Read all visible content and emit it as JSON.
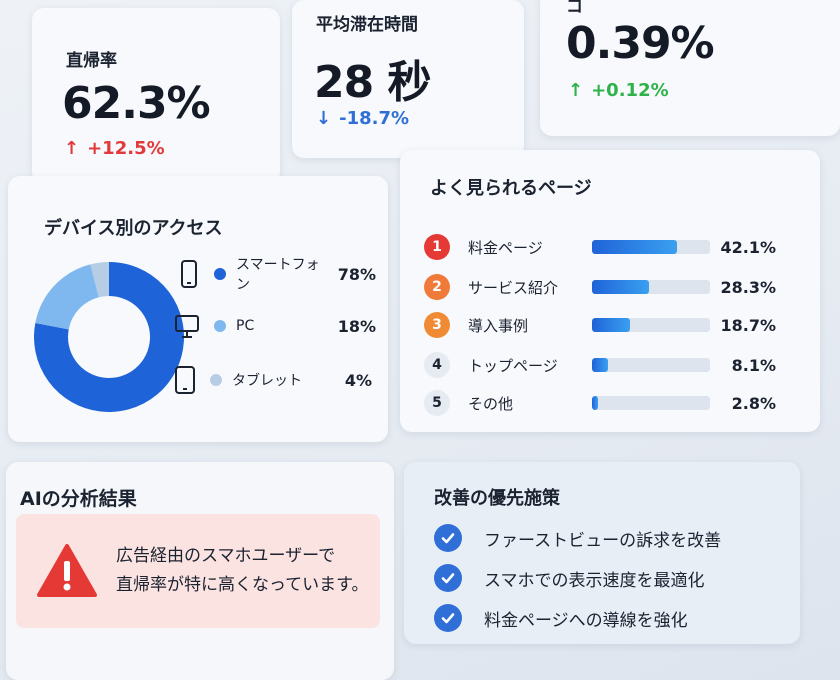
{
  "kpis": [
    {
      "label": "直帰率",
      "value": "62.3%",
      "delta": "+12.5%",
      "direction": "up",
      "color": "#e23a3a"
    },
    {
      "label": "平均滞在時間",
      "value": "28 秒",
      "delta": "-18.7%",
      "direction": "down",
      "color": "#2f6fd6"
    },
    {
      "label": "コ",
      "value": "0.39%",
      "delta": "+0.12%",
      "direction": "up",
      "color": "#2fb24a"
    }
  ],
  "device": {
    "title": "デバイス別のアクセス",
    "items": [
      {
        "name": "スマートフォン",
        "pct": "78%",
        "value": 78,
        "color": "#1f63d8",
        "icon": "smartphone-icon"
      },
      {
        "name": "PC",
        "pct": "18%",
        "value": 18,
        "color": "#7fb8ee",
        "icon": "monitor-icon"
      },
      {
        "name": "タブレット",
        "pct": "4%",
        "value": 4,
        "color": "#b7cde6",
        "icon": "tablet-icon"
      }
    ]
  },
  "pages": {
    "title": "よく見られるページ",
    "items": [
      {
        "rank": "1",
        "name": "料金ページ",
        "pct": "42.1%",
        "value": 42.1,
        "badge_color": "#e53935"
      },
      {
        "rank": "2",
        "name": "サービス紹介",
        "pct": "28.3%",
        "value": 28.3,
        "badge_color": "#f07a3a"
      },
      {
        "rank": "3",
        "name": "導入事例",
        "pct": "18.7%",
        "value": 18.7,
        "badge_color": "#f08a35"
      },
      {
        "rank": "4",
        "name": "トップページ",
        "pct": "8.1%",
        "value": 8.1,
        "badge_color": ""
      },
      {
        "rank": "5",
        "name": "その他",
        "pct": "2.8%",
        "value": 2.8,
        "badge_color": ""
      }
    ]
  },
  "ai": {
    "title": "AIの分析結果",
    "alert_line1": "広告経由のスマホユーザーで",
    "alert_line2": "直帰率が特に高くなっています。",
    "alert_icon": "warning-icon",
    "alert_color": "#e53935"
  },
  "measures": {
    "title": "改善の優先施策",
    "items": [
      "ファーストビューの訴求を改善",
      "スマホでの表示速度を最適化",
      "料金ページへの導線を強化"
    ]
  },
  "colors": {
    "accent": "#2f6fd6",
    "bar_gradient_start": "#1f63d8",
    "bar_gradient_end": "#3aa0f0"
  }
}
